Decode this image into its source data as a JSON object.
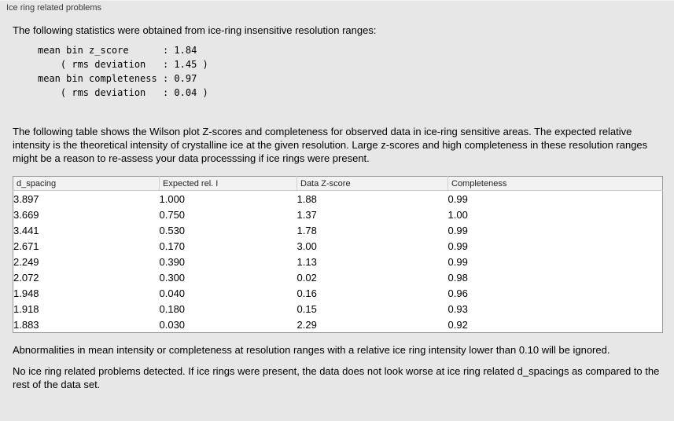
{
  "panel": {
    "title": "Ice ring related problems"
  },
  "intro": {
    "text": "The following statistics were obtained from ice-ring insensitive resolution ranges:"
  },
  "stats": {
    "lines": [
      "mean bin z_score      : 1.84",
      "    ( rms deviation   : 1.45 )",
      "mean bin completeness : 0.97",
      "    ( rms deviation   : 0.04 )"
    ]
  },
  "description": {
    "text": "The following table shows the Wilson plot Z-scores and completeness for observed data in ice-ring sensitive areas. The expected relative intensity is the theoretical intensity of crystalline ice at the given resolution. Large z-scores and high completeness in these resolution ranges might be a reason to re-assess your data processsing if ice rings were present."
  },
  "table": {
    "columns": [
      "d_spacing",
      "Expected rel. I",
      "Data Z-score",
      "Completeness"
    ],
    "rows": [
      [
        "3.897",
        "1.000",
        "1.88",
        "0.99"
      ],
      [
        "3.669",
        "0.750",
        "1.37",
        "1.00"
      ],
      [
        "3.441",
        "0.530",
        "1.78",
        "0.99"
      ],
      [
        "2.671",
        "0.170",
        "3.00",
        "0.99"
      ],
      [
        "2.249",
        "0.390",
        "1.13",
        "0.99"
      ],
      [
        "2.072",
        "0.300",
        "0.02",
        "0.98"
      ],
      [
        "1.948",
        "0.040",
        "0.16",
        "0.96"
      ],
      [
        "1.918",
        "0.180",
        "0.15",
        "0.93"
      ],
      [
        "1.883",
        "0.030",
        "2.29",
        "0.92"
      ]
    ]
  },
  "footnote": {
    "text": "Abnormalities in mean intensity or completeness at resolution ranges with a relative ice ring intensity lower than 0.10 will be ignored."
  },
  "conclusion": {
    "text": "No ice ring related problems detected. If ice rings were present, the data does not look worse at ice ring related d_spacings as compared to the rest of the data set."
  }
}
